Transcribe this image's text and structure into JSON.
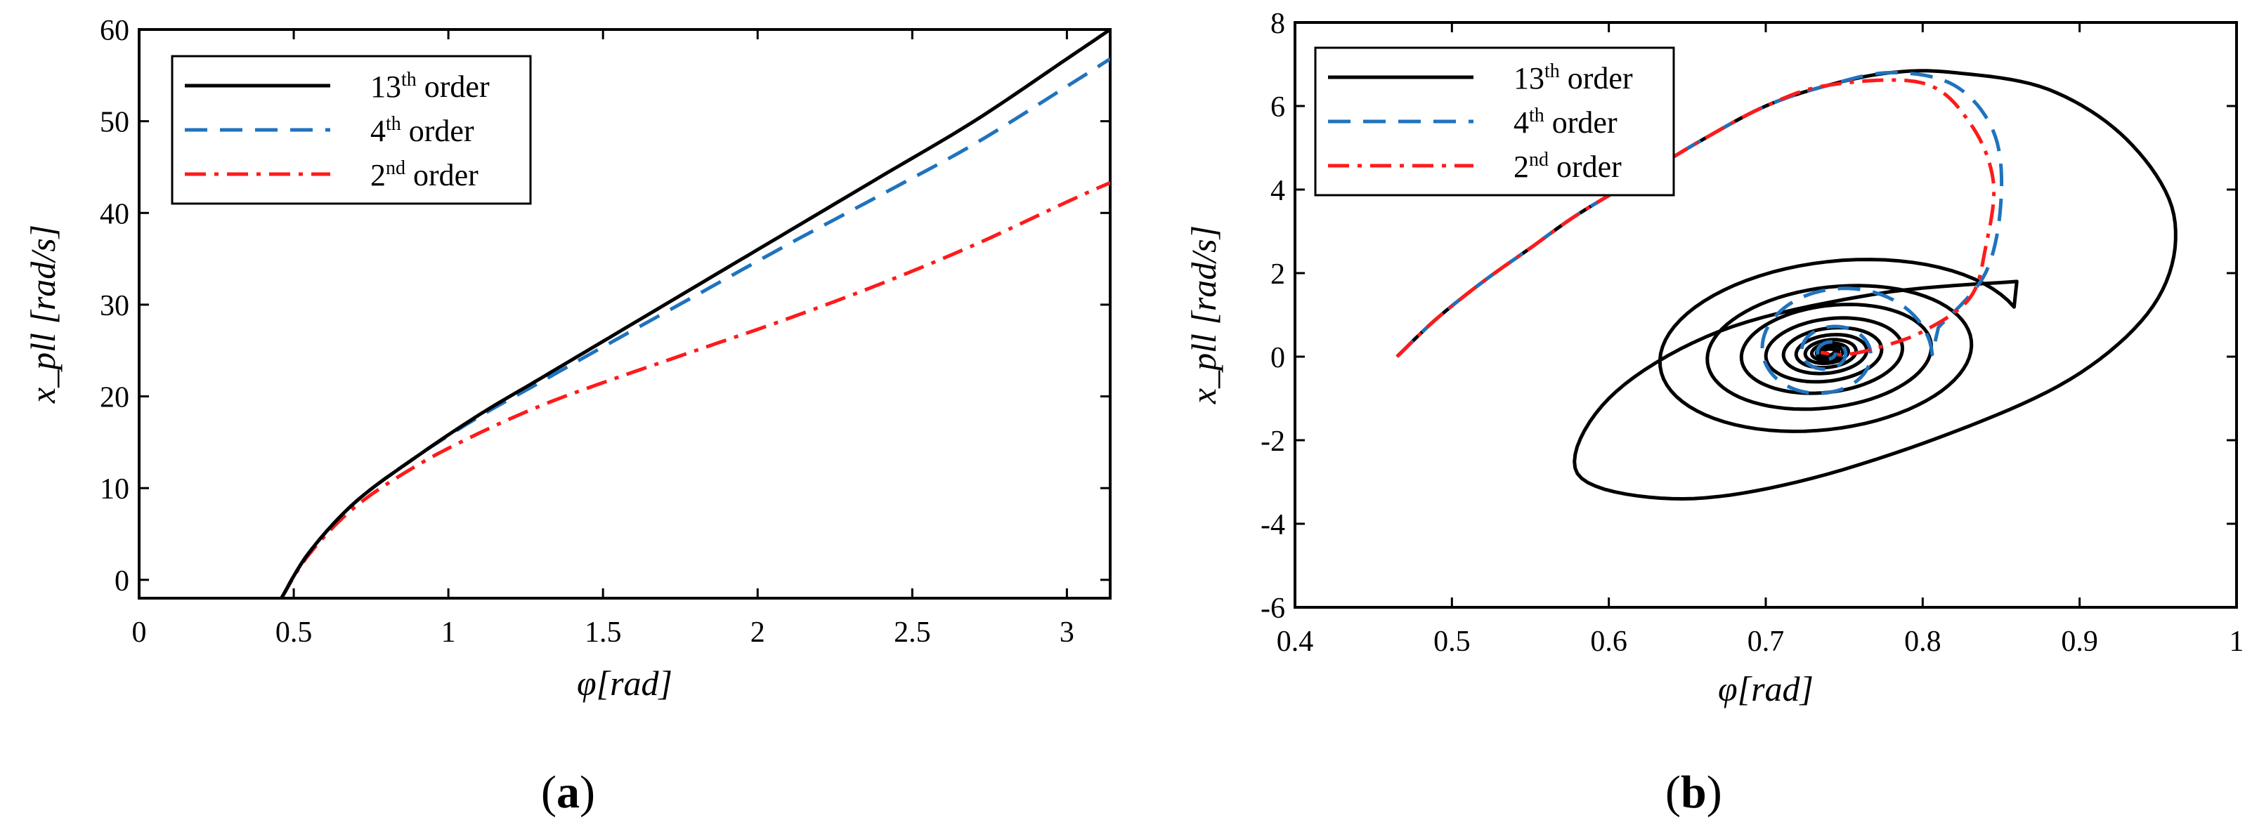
{
  "chart_data": [
    {
      "type": "line",
      "panel_label": "a",
      "xlabel": "φ[rad]",
      "ylabel": "x_pll [rad/s]",
      "xlim": [
        0,
        3.14
      ],
      "ylim": [
        -2,
        60
      ],
      "xticks": [
        "0",
        "0.5",
        "1",
        "1.5",
        "2",
        "2.5",
        "3"
      ],
      "yticks": [
        "0",
        "10",
        "20",
        "30",
        "40",
        "50",
        "60"
      ],
      "legend_position": "top-left",
      "series": [
        {
          "name": "13th order",
          "sup": "th",
          "base": "13",
          "rest": " order",
          "color": "#000000",
          "dash": "",
          "x": [
            0.46,
            0.55,
            0.7,
            0.9,
            1.1,
            1.3,
            1.5,
            1.8,
            2.1,
            2.4,
            2.7,
            3.0,
            3.14
          ],
          "y": [
            -2,
            3,
            8.5,
            13.5,
            18,
            22,
            26,
            32,
            38,
            44,
            50,
            56.8,
            60
          ]
        },
        {
          "name": "4th order",
          "sup": "th",
          "base": "4",
          "rest": " order",
          "color": "#1f73be",
          "dash": "32,18",
          "x": [
            0.46,
            0.55,
            0.7,
            0.9,
            1.1,
            1.3,
            1.5,
            1.8,
            2.1,
            2.4,
            2.7,
            3.0,
            3.14
          ],
          "y": [
            -2,
            3,
            8.5,
            13.5,
            17.8,
            21.6,
            25.4,
            31,
            36.6,
            42,
            47.5,
            53.8,
            56.8
          ]
        },
        {
          "name": "2nd order",
          "sup": "nd",
          "base": "2",
          "rest": " order",
          "color": "#ff1a1a",
          "dash": "30,12,6,12",
          "x": [
            0.46,
            0.55,
            0.7,
            0.9,
            1.1,
            1.3,
            1.5,
            1.8,
            2.1,
            2.4,
            2.7,
            3.0,
            3.14
          ],
          "y": [
            -2,
            2.8,
            8,
            12.5,
            16,
            19,
            21.5,
            25,
            28.5,
            32.3,
            36.5,
            41.2,
            43.3
          ]
        }
      ]
    },
    {
      "type": "line",
      "panel_label": "b",
      "xlabel": "φ[rad]",
      "ylabel": "x_pll [rad/s]",
      "xlim": [
        0.4,
        1.0
      ],
      "ylim": [
        -6,
        8
      ],
      "xticks": [
        "0.4",
        "0.5",
        "0.6",
        "0.7",
        "0.8",
        "0.9",
        "1"
      ],
      "yticks": [
        "-6",
        "-4",
        "-2",
        "0",
        "2",
        "4",
        "6",
        "8"
      ],
      "legend_position": "top-left",
      "series": [
        {
          "name": "13th order",
          "sup": "th",
          "base": "13",
          "rest": " order",
          "color": "#000000",
          "dash": ""
        },
        {
          "name": "4th order",
          "sup": "th",
          "base": "4",
          "rest": " order",
          "color": "#1f73be",
          "dash": "32,18"
        },
        {
          "name": "2nd order",
          "sup": "nd",
          "base": "2",
          "rest": " order",
          "color": "#ff1a1a",
          "dash": "30,12,6,12"
        }
      ]
    }
  ]
}
